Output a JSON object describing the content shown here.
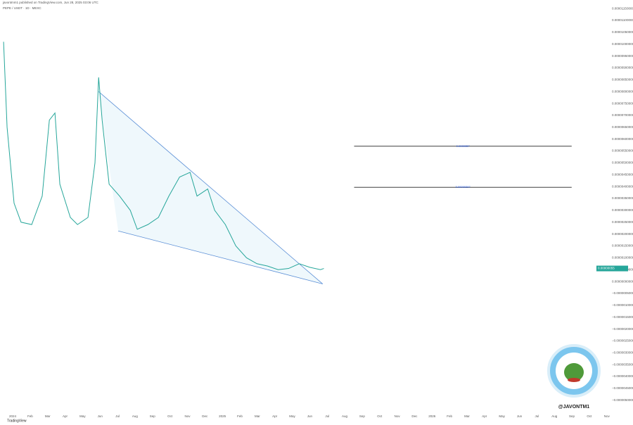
{
  "header": {
    "publisher": "javontmm1 published on TradingView.com, Jun 28, 2025 03:06 UTC",
    "symbol": "PEPE / USDT · 1D · MEXC"
  },
  "chart_data": {
    "type": "line",
    "color": "#26a69a",
    "x": [
      -0.52,
      -0.32,
      0.08,
      0.48,
      1.09,
      1.69,
      2.1,
      2.42,
      2.7,
      3.3,
      3.71,
      4.31,
      4.71,
      4.92,
      5.12,
      5.52,
      6.12,
      6.73,
      7.13,
      7.74,
      8.34,
      8.94,
      9.55,
      10.15,
      10.55,
      11.16,
      11.56,
      12.17,
      12.77,
      13.38,
      13.98,
      14.59,
      15.19,
      15.79,
      16.4,
      17.0,
      17.61,
      17.81
    ],
    "values": [
      1.01e-05,
      6.5e-06,
      3.3e-06,
      2.5e-06,
      2.4e-06,
      3.6e-06,
      6.8e-06,
      7.1e-06,
      4.1e-06,
      2.7e-06,
      2.4e-06,
      2.7e-06,
      5e-06,
      8.6e-06,
      6.8e-06,
      4.1e-06,
      3.6e-06,
      3e-06,
      2.2e-06,
      2.4e-06,
      2.7e-06,
      3.6e-06,
      4.4e-06,
      4.6e-06,
      3.6e-06,
      3.9e-06,
      3e-06,
      2.4e-06,
      1.5e-06,
      1e-06,
      7.5e-07,
      6.5e-07,
      5e-07,
      5.5e-07,
      7.5e-07,
      6e-07,
      5e-07,
      5.5e-07
    ],
    "xlim": [
      -0.725,
      35.5
    ],
    "xticks": [
      {
        "value": 0,
        "label": "2024"
      },
      {
        "value": 1,
        "label": "Feb"
      },
      {
        "value": 2,
        "label": "Mar"
      },
      {
        "value": 3,
        "label": "Apr"
      },
      {
        "value": 4,
        "label": "May"
      },
      {
        "value": 5,
        "label": "Jun"
      },
      {
        "value": 6,
        "label": "Jul"
      },
      {
        "value": 7,
        "label": "Aug"
      },
      {
        "value": 8,
        "label": "Sep"
      },
      {
        "value": 9,
        "label": "Oct"
      },
      {
        "value": 10,
        "label": "Nov"
      },
      {
        "value": 11,
        "label": "Dec"
      },
      {
        "value": 12,
        "label": "2025"
      },
      {
        "value": 13,
        "label": "Feb"
      },
      {
        "value": 14,
        "label": "Mar"
      },
      {
        "value": 15,
        "label": "Apr"
      },
      {
        "value": 16,
        "label": "May"
      },
      {
        "value": 17,
        "label": "Jun"
      },
      {
        "value": 18,
        "label": "Jul"
      },
      {
        "value": 19,
        "label": "Aug"
      },
      {
        "value": 20,
        "label": "Sep"
      },
      {
        "value": 21,
        "label": "Oct"
      },
      {
        "value": 22,
        "label": "Nov"
      },
      {
        "value": 23,
        "label": "Dec"
      },
      {
        "value": 24,
        "label": "2026"
      },
      {
        "value": 25,
        "label": "Feb"
      },
      {
        "value": 26,
        "label": "Mar"
      },
      {
        "value": 27,
        "label": "Apr"
      },
      {
        "value": 28,
        "label": "May"
      },
      {
        "value": 29,
        "label": "Jun"
      },
      {
        "value": 30,
        "label": "Jul"
      },
      {
        "value": 31,
        "label": "Aug"
      },
      {
        "value": 32,
        "label": "Sep"
      },
      {
        "value": 33,
        "label": "Oct"
      },
      {
        "value": 34,
        "label": "Nov"
      }
    ],
    "ylim": [
      -5.57e-06,
      1.186e-05
    ],
    "yticks": [
      {
        "value": 1.15e-05,
        "label": "0.00001150000"
      },
      {
        "value": 1.1e-05,
        "label": "0.00001100000"
      },
      {
        "value": 1.05e-05,
        "label": "0.00001050000"
      },
      {
        "value": 1e-05,
        "label": "0.00001000000"
      },
      {
        "value": 9.5e-06,
        "label": "0.00000950000"
      },
      {
        "value": 9e-06,
        "label": "0.00000900000"
      },
      {
        "value": 8.5e-06,
        "label": "0.00000850000"
      },
      {
        "value": 8e-06,
        "label": "0.00000800000"
      },
      {
        "value": 7.5e-06,
        "label": "0.00000750000"
      },
      {
        "value": 7e-06,
        "label": "0.00000700000"
      },
      {
        "value": 6.5e-06,
        "label": "0.00000650000"
      },
      {
        "value": 6e-06,
        "label": "0.00000600000"
      },
      {
        "value": 5.5e-06,
        "label": "0.00000550000"
      },
      {
        "value": 5e-06,
        "label": "0.00000500000"
      },
      {
        "value": 4.5e-06,
        "label": "0.00000450000"
      },
      {
        "value": 4e-06,
        "label": "0.00000400000"
      },
      {
        "value": 3.5e-06,
        "label": "0.00000350000"
      },
      {
        "value": 3e-06,
        "label": "0.00000300000"
      },
      {
        "value": 2.5e-06,
        "label": "0.00000250000"
      },
      {
        "value": 2e-06,
        "label": "0.00000200000"
      },
      {
        "value": 1.5e-06,
        "label": "0.00000150000"
      },
      {
        "value": 1e-06,
        "label": "0.00000100000"
      },
      {
        "value": 5e-07,
        "label": "0.00000050000"
      },
      {
        "value": 0,
        "label": "0.00000000000"
      },
      {
        "value": -5e-07,
        "label": "−0.00000050000"
      },
      {
        "value": -1e-06,
        "label": "−0.00000100000"
      },
      {
        "value": -1.5e-06,
        "label": "−0.00000150000"
      },
      {
        "value": -2e-06,
        "label": "−0.00000200000"
      },
      {
        "value": -2.5e-06,
        "label": "−0.00000250000"
      },
      {
        "value": -3e-06,
        "label": "−0.00000300000"
      },
      {
        "value": -3.5e-06,
        "label": "−0.00000350000"
      },
      {
        "value": -4e-06,
        "label": "−0.00000400000"
      },
      {
        "value": -4.5e-06,
        "label": "−0.00000450000"
      },
      {
        "value": -5e-06,
        "label": "−0.00000500000"
      }
    ],
    "last_price": {
      "value": 5.5e-07,
      "label": "0.00000055"
    },
    "trendlines": [
      {
        "x": [
          4.92,
          17.74
        ],
        "values": [
          8e-06,
          -1e-07
        ]
      },
      {
        "x": [
          6.04,
          17.74
        ],
        "values": [
          2.13e-06,
          -1e-07
        ]
      }
    ],
    "levels": [
      {
        "x": [
          19.54,
          31.99
        ],
        "value": 5.7e-06,
        "label": "0.0000057"
      },
      {
        "x": [
          19.54,
          31.99
        ],
        "value": 3.97e-06,
        "label": "0.00000397"
      }
    ],
    "watermark": "@JAVONTM1",
    "footer": "TradingView"
  }
}
